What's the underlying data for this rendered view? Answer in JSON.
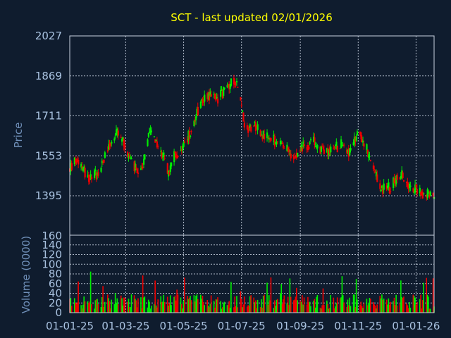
{
  "chart_data": {
    "type": "candlestick",
    "title": "SCT - last updated 02/01/2026",
    "colors": {
      "background": "#0f1c2e",
      "up": "#00ee00",
      "down": "#ee0000",
      "title": "#ffff00",
      "tick": "#a9c2e0",
      "axis_label": "#6f8fb8",
      "grid": "#c8d2e0"
    },
    "grid": true,
    "price_panel": {
      "ylabel": "Price",
      "ylim": [
        1395,
        2027
      ],
      "yticks": [
        {
          "value": 2027,
          "label": "2027"
        },
        {
          "value": 1869,
          "label": "1869"
        },
        {
          "value": 1711,
          "label": "1711"
        },
        {
          "value": 1553,
          "label": "1553"
        },
        {
          "value": 1395,
          "label": "1395"
        }
      ],
      "bottom_label": "160"
    },
    "volume_panel": {
      "ylabel": "Volume (0000)",
      "ylim": [
        0,
        160
      ],
      "yticks": [
        0,
        20,
        40,
        60,
        80,
        100,
        120,
        140
      ]
    },
    "x_axis": {
      "start": "2025-01-01",
      "end": "2026-01-20",
      "ticks": [
        {
          "date": "2025-01-01",
          "label": "01-01-25"
        },
        {
          "date": "2025-03-01",
          "label": "01-03-25"
        },
        {
          "date": "2025-05-01",
          "label": "01-05-25"
        },
        {
          "date": "2025-07-01",
          "label": "01-07-25"
        },
        {
          "date": "2025-09-01",
          "label": "01-09-25"
        },
        {
          "date": "2025-11-01",
          "label": "01-11-25"
        },
        {
          "date": "2026-01-01",
          "label": "01-01-26"
        }
      ]
    },
    "price_trend": [
      [
        "2025-01-01",
        1500
      ],
      [
        "2025-01-08",
        1540
      ],
      [
        "2025-01-15",
        1500
      ],
      [
        "2025-01-22",
        1470
      ],
      [
        "2025-02-01",
        1490
      ],
      [
        "2025-02-10",
        1590
      ],
      [
        "2025-02-20",
        1640
      ],
      [
        "2025-03-01",
        1590
      ],
      [
        "2025-03-08",
        1520
      ],
      [
        "2025-03-15",
        1470
      ],
      [
        "2025-03-22",
        1560
      ],
      [
        "2025-03-26",
        1660
      ],
      [
        "2025-04-02",
        1600
      ],
      [
        "2025-04-10",
        1550
      ],
      [
        "2025-04-15",
        1480
      ],
      [
        "2025-04-22",
        1560
      ],
      [
        "2025-05-01",
        1590
      ],
      [
        "2025-05-08",
        1650
      ],
      [
        "2025-05-15",
        1730
      ],
      [
        "2025-05-25",
        1800
      ],
      [
        "2025-06-05",
        1780
      ],
      [
        "2025-06-15",
        1820
      ],
      [
        "2025-06-25",
        1860
      ],
      [
        "2025-06-30",
        1760
      ],
      [
        "2025-07-05",
        1660
      ],
      [
        "2025-07-15",
        1680
      ],
      [
        "2025-07-25",
        1630
      ],
      [
        "2025-08-05",
        1610
      ],
      [
        "2025-08-15",
        1580
      ],
      [
        "2025-08-25",
        1560
      ],
      [
        "2025-09-05",
        1590
      ],
      [
        "2025-09-15",
        1610
      ],
      [
        "2025-09-25",
        1570
      ],
      [
        "2025-10-05",
        1580
      ],
      [
        "2025-10-15",
        1600
      ],
      [
        "2025-10-25",
        1560
      ],
      [
        "2025-11-01",
        1660
      ],
      [
        "2025-11-08",
        1600
      ],
      [
        "2025-11-15",
        1510
      ],
      [
        "2025-11-25",
        1420
      ],
      [
        "2025-12-05",
        1430
      ],
      [
        "2025-12-15",
        1480
      ],
      [
        "2025-12-25",
        1440
      ],
      [
        "2026-01-05",
        1410
      ],
      [
        "2026-01-15",
        1400
      ],
      [
        "2026-01-20",
        1390
      ]
    ]
  }
}
